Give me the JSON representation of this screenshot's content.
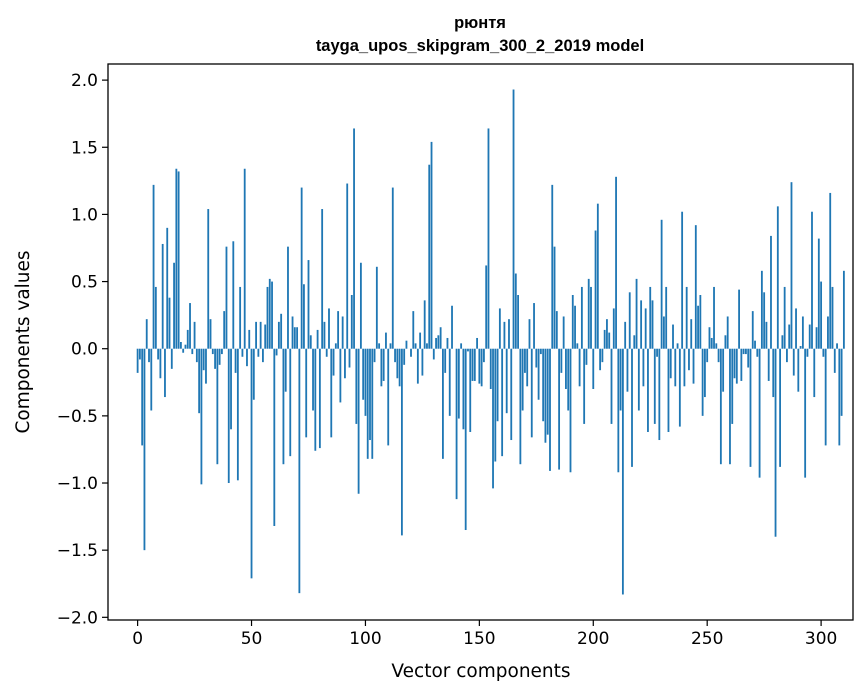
{
  "chart_data": {
    "type": "bar",
    "title": "рюнтя",
    "subtitle": "tayga_upos_skipgram_300_2_2019 model",
    "xlabel": "Vector components",
    "ylabel": "Components values",
    "xlim": [
      -13,
      314
    ],
    "ylim": [
      -2.02,
      2.12
    ],
    "xticks": [
      0,
      50,
      100,
      150,
      200,
      250,
      300
    ],
    "xtick_labels": [
      "0",
      "50",
      "100",
      "150",
      "200",
      "250",
      "300"
    ],
    "yticks": [
      2.0,
      1.5,
      1.0,
      0.5,
      0.0,
      -0.5,
      -1.0,
      -1.5,
      -2.0
    ],
    "ytick_labels": [
      "2.0",
      "1.5",
      "1.0",
      "0.5",
      "0.0",
      "−0.5",
      "−1.0",
      "−1.5",
      "−2.0"
    ],
    "grid": false,
    "bar_color": "#1f77b4",
    "x_start": 0,
    "values": [
      -0.18,
      -0.08,
      -0.72,
      -1.5,
      0.22,
      -0.1,
      -0.46,
      1.22,
      0.46,
      -0.08,
      -0.22,
      0.78,
      -0.36,
      0.9,
      0.38,
      -0.15,
      0.64,
      1.34,
      1.32,
      0.05,
      -0.03,
      0.03,
      0.14,
      0.34,
      -0.04,
      0.2,
      -0.1,
      -0.48,
      -1.01,
      -0.16,
      -0.26,
      1.04,
      0.22,
      -0.04,
      -0.15,
      -0.86,
      -0.12,
      -0.04,
      0.28,
      0.76,
      -1.0,
      -0.6,
      0.8,
      -0.18,
      -0.98,
      0.46,
      -0.06,
      1.34,
      -0.13,
      0.14,
      -1.71,
      -0.38,
      0.2,
      -0.06,
      0.2,
      -0.1,
      0.18,
      0.46,
      0.52,
      0.5,
      -1.32,
      -0.05,
      0.2,
      0.26,
      -0.86,
      -0.32,
      0.76,
      -0.8,
      0.24,
      0.16,
      0.16,
      -1.82,
      1.2,
      0.48,
      -0.66,
      0.66,
      0.1,
      -0.46,
      -0.76,
      0.14,
      -0.74,
      1.04,
      0.2,
      -0.06,
      0.3,
      -0.66,
      -0.2,
      0.04,
      0.28,
      -0.4,
      0.24,
      -0.22,
      1.23,
      -0.14,
      0.4,
      1.64,
      -0.56,
      -1.08,
      0.64,
      -0.38,
      -0.5,
      -0.82,
      -0.68,
      -0.82,
      -0.1,
      0.61,
      0.04,
      -0.28,
      -0.24,
      0.12,
      -0.72,
      0.04,
      1.2,
      -0.1,
      -0.22,
      -0.28,
      -1.39,
      -0.12,
      0.06,
      0.0,
      -0.06,
      0.28,
      0.04,
      -0.26,
      0.12,
      -0.2,
      0.36,
      0.04,
      1.37,
      1.54,
      -0.08,
      0.08,
      0.1,
      0.16,
      -0.82,
      -0.18,
      0.08,
      -0.5,
      0.32,
      0.0,
      -1.12,
      -0.52,
      0.04,
      -0.6,
      -1.35,
      -0.02,
      -0.62,
      -0.24,
      -0.24,
      0.08,
      -0.26,
      -0.28,
      -0.1,
      0.62,
      1.64,
      -0.3,
      -1.04,
      -0.84,
      -0.54,
      0.3,
      -0.8,
      0.2,
      -0.48,
      0.22,
      -0.68,
      1.93,
      0.56,
      0.4,
      -0.86,
      -0.46,
      -0.18,
      -0.28,
      0.22,
      -0.66,
      0.34,
      -0.14,
      -0.38,
      -0.04,
      -0.54,
      -0.7,
      -0.64,
      -0.91,
      1.22,
      0.76,
      0.28,
      -0.9,
      -0.18,
      0.24,
      -0.3,
      -0.46,
      -0.92,
      0.4,
      0.32,
      0.04,
      -0.28,
      0.46,
      -0.56,
      -0.12,
      0.52,
      0.46,
      -0.3,
      0.88,
      1.08,
      -0.16,
      -0.1,
      0.14,
      0.22,
      0.12,
      -0.56,
      0.3,
      1.28,
      -0.92,
      -0.46,
      -1.83,
      0.2,
      -0.32,
      0.42,
      -0.88,
      0.1,
      0.52,
      -0.46,
      0.36,
      -0.28,
      0.3,
      -0.62,
      0.46,
      0.36,
      -0.56,
      -0.06,
      -0.68,
      0.96,
      0.24,
      0.46,
      -0.62,
      -0.22,
      0.18,
      -0.28,
      0.04,
      -0.58,
      1.02,
      -0.28,
      0.46,
      -0.16,
      0.22,
      -0.26,
      0.92,
      0.32,
      0.4,
      -0.5,
      -0.36,
      -0.1,
      0.16,
      0.08,
      0.46,
      0.04,
      -0.1,
      -0.86,
      -0.32,
      0.1,
      0.24,
      -0.86,
      -0.56,
      -0.22,
      -0.26,
      0.44,
      -0.24,
      -0.04,
      -0.04,
      -0.14,
      -0.88,
      0.28,
      0.06,
      -0.06,
      -0.96,
      0.58,
      0.42,
      0.2,
      -0.24,
      0.84,
      -0.36,
      -1.4,
      1.06,
      -0.88,
      0.1,
      0.46,
      -0.1,
      0.18,
      1.24,
      -0.2,
      0.3,
      -0.32,
      0.02,
      0.24,
      -0.96,
      -0.06,
      0.18,
      1.02,
      -0.36,
      0.16,
      0.82,
      0.5,
      -0.06,
      -0.72,
      0.24,
      1.16,
      0.46,
      -0.18,
      0.04,
      -0.72,
      -0.5,
      0.58
    ]
  }
}
